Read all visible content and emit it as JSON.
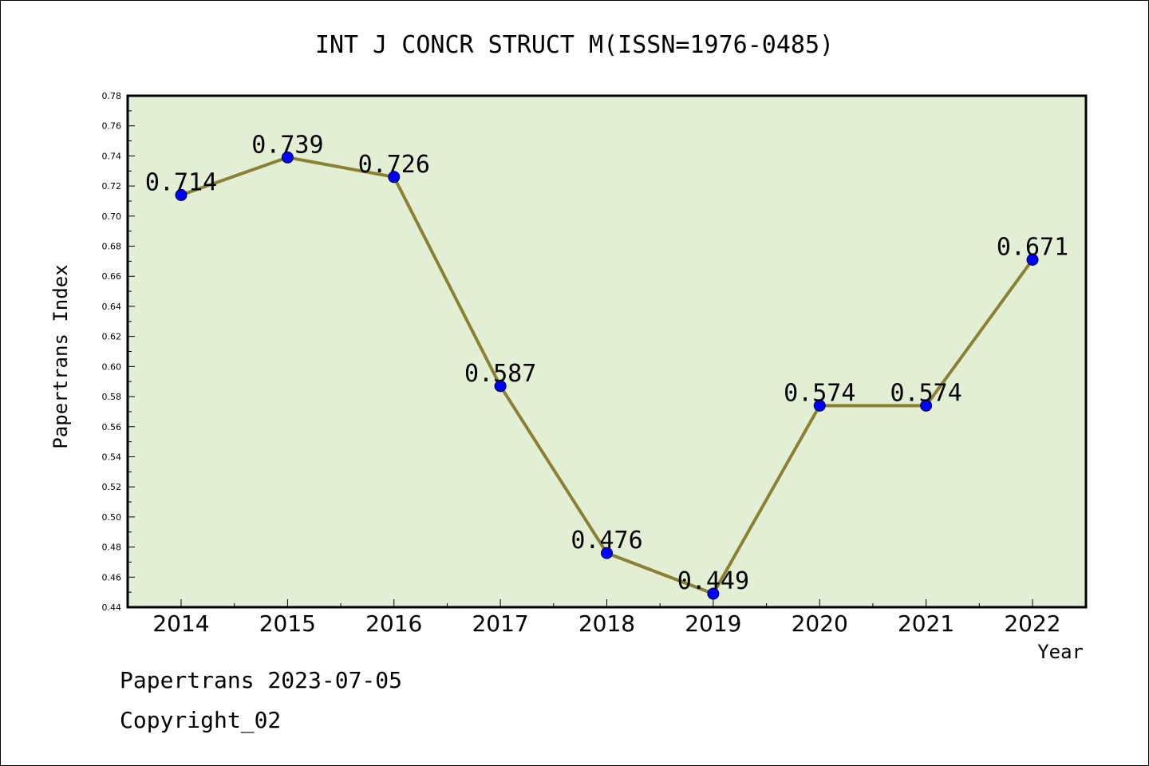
{
  "chart_data": {
    "type": "line",
    "title": "INT J CONCR STRUCT M(ISSN=1976-0485)",
    "xlabel": "Year",
    "ylabel": "Papertrans Index",
    "x": [
      "2014",
      "2015",
      "2016",
      "2017",
      "2018",
      "2019",
      "2020",
      "2021",
      "2022"
    ],
    "series": [
      {
        "values": [
          0.714,
          0.739,
          0.726,
          0.587,
          0.476,
          0.449,
          0.574,
          0.574,
          0.671
        ]
      }
    ],
    "data_labels": [
      "0.714",
      "0.739",
      "0.726",
      "0.587",
      "0.476",
      "0.449",
      "0.574",
      "0.574",
      "0.671"
    ],
    "ylim": [
      0.44,
      0.78
    ],
    "yticks": [
      "0.44",
      "0.46",
      "0.48",
      "0.50",
      "0.52",
      "0.54",
      "0.56",
      "0.58",
      "0.60",
      "0.62",
      "0.64",
      "0.66",
      "0.68",
      "0.70",
      "0.72",
      "0.74",
      "0.76",
      "0.78"
    ],
    "grid": false,
    "colors": {
      "plot_background": "#e2efd4",
      "line": "#8b8135",
      "marker": "#0000ff"
    }
  },
  "footer": {
    "line1": "Papertrans 2023-07-05",
    "line2": "Copyright_02"
  }
}
